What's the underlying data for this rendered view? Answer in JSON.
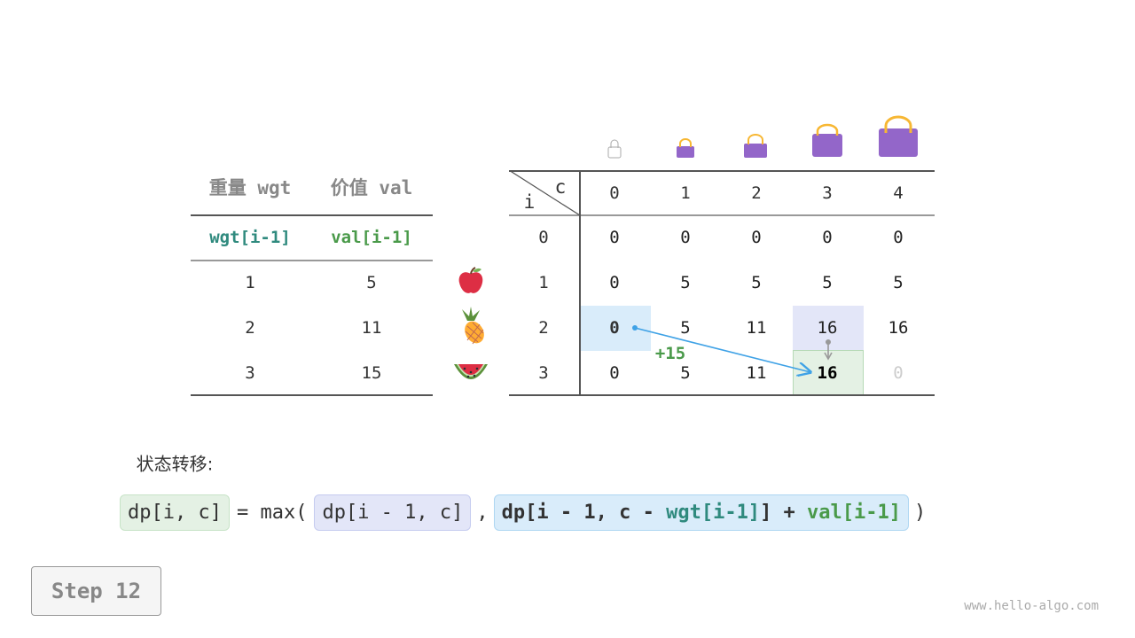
{
  "items_table": {
    "headers": [
      "重量 wgt",
      "价值 val"
    ],
    "subheaders": [
      "wgt[i-1]",
      "val[i-1]"
    ],
    "rows": [
      [
        "1",
        "5"
      ],
      [
        "2",
        "11"
      ],
      [
        "3",
        "15"
      ]
    ],
    "fruit_icons": [
      "apple-icon",
      "pineapple-icon",
      "watermelon-icon"
    ]
  },
  "dp_table": {
    "corner_row_label": "i",
    "corner_col_label": "c",
    "col_headers": [
      "0",
      "1",
      "2",
      "3",
      "4"
    ],
    "row_headers": [
      "0",
      "1",
      "2",
      "3"
    ],
    "rows": [
      [
        "0",
        "0",
        "0",
        "0",
        "0"
      ],
      [
        "0",
        "5",
        "5",
        "5",
        "5"
      ],
      [
        "0",
        "5",
        "11",
        "16",
        "16"
      ],
      [
        "0",
        "5",
        "11",
        "16",
        "0"
      ]
    ],
    "bag_icons": [
      "bag-icon",
      "bag-icon",
      "bag-icon",
      "bag-icon",
      "bag-icon"
    ],
    "highlight_source_blue": [
      2,
      0
    ],
    "highlight_source_purple": [
      2,
      3
    ],
    "highlight_target": [
      3,
      3
    ],
    "annotation": "+15",
    "colors": {
      "blue": "#d9ecfa",
      "purple": "#e3e6f8",
      "green": "#e4f1e4",
      "arrow": "#3fa2e6",
      "teal": "#2f8a7e",
      "green_text": "#4a9a4a"
    }
  },
  "transition_label": "状态转移:",
  "formula": {
    "lhs": "dp[i, c]",
    "eq": "= max(",
    "opt1": "dp[i - 1, c]",
    "comma": ",",
    "opt2_a": "dp[i - 1, c - ",
    "opt2_wgt": "wgt[i-1]",
    "opt2_b": "] + ",
    "opt2_val": "val[i-1]",
    "close": ")"
  },
  "step_label": "Step 12",
  "watermark": "www.hello-algo.com"
}
